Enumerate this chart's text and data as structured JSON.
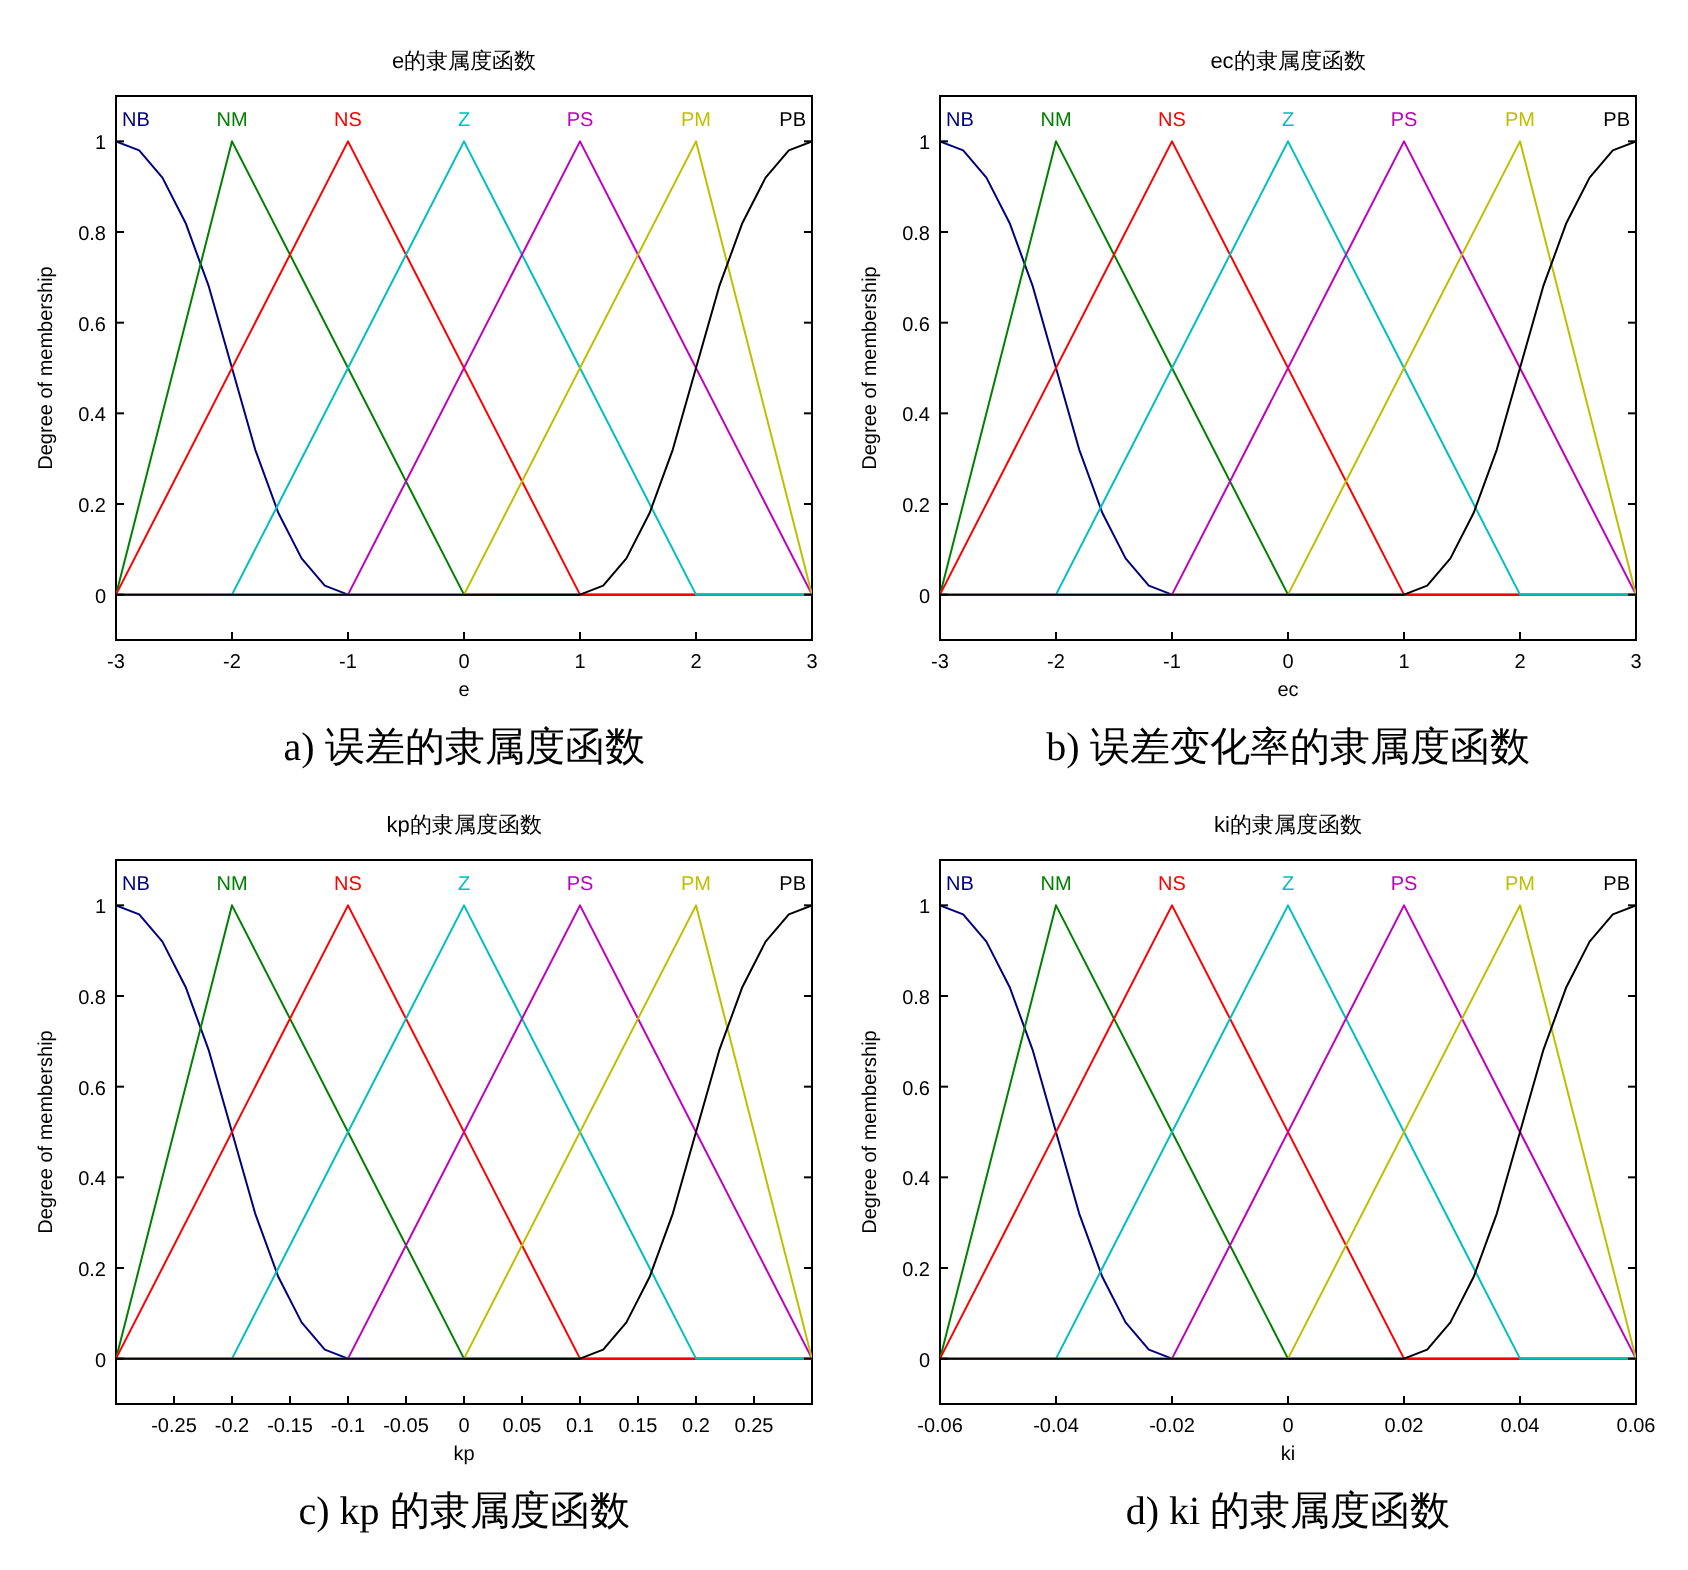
{
  "chart_data": [
    {
      "type": "line",
      "title": "e的隶属度函数",
      "xlabel": "e",
      "ylabel": "Degree of membership",
      "annotations": [
        "a)  误差的隶属度函数"
      ],
      "xlim": [
        -3,
        3
      ],
      "xticks": [
        -3,
        -2,
        -1,
        0,
        1,
        2,
        3
      ],
      "ylim": [
        -0.1,
        1.1
      ],
      "yticks": [
        0,
        0.2,
        0.4,
        0.6,
        0.8,
        1
      ],
      "series": [
        {
          "name": "NB",
          "color": "#000080",
          "x": [
            -3,
            -2.8,
            -2.6,
            -2.4,
            -2.2,
            -2,
            -1.8,
            -1.6,
            -1.4,
            -1.2,
            -1,
            3
          ],
          "values": [
            1,
            0.98,
            0.92,
            0.82,
            0.68,
            0.5,
            0.32,
            0.18,
            0.08,
            0.02,
            0,
            0
          ]
        },
        {
          "name": "NM",
          "color": "#008000",
          "x": [
            -3,
            -2,
            0,
            3
          ],
          "values": [
            0,
            1,
            0,
            0
          ]
        },
        {
          "name": "NS",
          "color": "#ff0000",
          "x": [
            -3,
            -1,
            1,
            3
          ],
          "values": [
            0,
            1,
            0,
            0
          ]
        },
        {
          "name": "Z",
          "color": "#00bfbf",
          "x": [
            -3,
            -2,
            0,
            2,
            3
          ],
          "values": [
            0,
            0,
            1,
            0,
            0
          ]
        },
        {
          "name": "PS",
          "color": "#bf00bf",
          "x": [
            -3,
            -1,
            1,
            3
          ],
          "values": [
            0,
            0,
            1,
            0
          ]
        },
        {
          "name": "PM",
          "color": "#bfbf00",
          "x": [
            -3,
            0,
            2,
            3
          ],
          "values": [
            0,
            0,
            1,
            0
          ]
        },
        {
          "name": "PB",
          "color": "#000000",
          "x": [
            -3,
            1,
            1.2,
            1.4,
            1.6,
            1.8,
            2,
            2.2,
            2.4,
            2.6,
            2.8,
            3
          ],
          "values": [
            0,
            0,
            0.02,
            0.08,
            0.18,
            0.32,
            0.5,
            0.68,
            0.82,
            0.92,
            0.98,
            1
          ]
        }
      ]
    },
    {
      "type": "line",
      "title": "ec的隶属度函数",
      "xlabel": "ec",
      "ylabel": "Degree of membership",
      "annotations": [
        "b)  误差变化率的隶属度函数"
      ],
      "xlim": [
        -3,
        3
      ],
      "xticks": [
        -3,
        -2,
        -1,
        0,
        1,
        2,
        3
      ],
      "ylim": [
        -0.1,
        1.1
      ],
      "yticks": [
        0,
        0.2,
        0.4,
        0.6,
        0.8,
        1
      ],
      "series": [
        {
          "name": "NB",
          "color": "#000080",
          "x": [
            -3,
            -2.8,
            -2.6,
            -2.4,
            -2.2,
            -2,
            -1.8,
            -1.6,
            -1.4,
            -1.2,
            -1,
            3
          ],
          "values": [
            1,
            0.98,
            0.92,
            0.82,
            0.68,
            0.5,
            0.32,
            0.18,
            0.08,
            0.02,
            0,
            0
          ]
        },
        {
          "name": "NM",
          "color": "#008000",
          "x": [
            -3,
            -2,
            0,
            3
          ],
          "values": [
            0,
            1,
            0,
            0
          ]
        },
        {
          "name": "NS",
          "color": "#ff0000",
          "x": [
            -3,
            -1,
            1,
            3
          ],
          "values": [
            0,
            1,
            0,
            0
          ]
        },
        {
          "name": "Z",
          "color": "#00bfbf",
          "x": [
            -3,
            -2,
            0,
            2,
            3
          ],
          "values": [
            0,
            0,
            1,
            0,
            0
          ]
        },
        {
          "name": "PS",
          "color": "#bf00bf",
          "x": [
            -3,
            -1,
            1,
            3
          ],
          "values": [
            0,
            0,
            1,
            0
          ]
        },
        {
          "name": "PM",
          "color": "#bfbf00",
          "x": [
            -3,
            0,
            2,
            3
          ],
          "values": [
            0,
            0,
            1,
            0
          ]
        },
        {
          "name": "PB",
          "color": "#000000",
          "x": [
            -3,
            1,
            1.2,
            1.4,
            1.6,
            1.8,
            2,
            2.2,
            2.4,
            2.6,
            2.8,
            3
          ],
          "values": [
            0,
            0,
            0.02,
            0.08,
            0.18,
            0.32,
            0.5,
            0.68,
            0.82,
            0.92,
            0.98,
            1
          ]
        }
      ]
    },
    {
      "type": "line",
      "title": "kp的隶属度函数",
      "xlabel": "kp",
      "ylabel": "Degree of membership",
      "annotations": [
        "c) kp 的隶属度函数"
      ],
      "xlim": [
        -0.3,
        0.3
      ],
      "xticks": [
        -0.25,
        -0.2,
        -0.15,
        -0.1,
        -0.05,
        0,
        0.05,
        0.1,
        0.15,
        0.2,
        0.25
      ],
      "ylim": [
        -0.1,
        1.1
      ],
      "yticks": [
        0,
        0.2,
        0.4,
        0.6,
        0.8,
        1
      ],
      "series": [
        {
          "name": "NB",
          "color": "#000080",
          "x": [
            -0.3,
            -0.28,
            -0.26,
            -0.24,
            -0.22,
            -0.2,
            -0.18,
            -0.16,
            -0.14,
            -0.12,
            -0.1,
            0.3
          ],
          "values": [
            1,
            0.98,
            0.92,
            0.82,
            0.68,
            0.5,
            0.32,
            0.18,
            0.08,
            0.02,
            0,
            0
          ]
        },
        {
          "name": "NM",
          "color": "#008000",
          "x": [
            -0.3,
            -0.2,
            0,
            0.3
          ],
          "values": [
            0,
            1,
            0,
            0
          ]
        },
        {
          "name": "NS",
          "color": "#ff0000",
          "x": [
            -0.3,
            -0.1,
            0.1,
            0.3
          ],
          "values": [
            0,
            1,
            0,
            0
          ]
        },
        {
          "name": "Z",
          "color": "#00bfbf",
          "x": [
            -0.3,
            -0.2,
            0,
            0.2,
            0.3
          ],
          "values": [
            0,
            0,
            1,
            0,
            0
          ]
        },
        {
          "name": "PS",
          "color": "#bf00bf",
          "x": [
            -0.3,
            -0.1,
            0.1,
            0.3
          ],
          "values": [
            0,
            0,
            1,
            0
          ]
        },
        {
          "name": "PM",
          "color": "#bfbf00",
          "x": [
            -0.3,
            0,
            0.2,
            0.3
          ],
          "values": [
            0,
            0,
            1,
            0
          ]
        },
        {
          "name": "PB",
          "color": "#000000",
          "x": [
            -0.3,
            0.1,
            0.12,
            0.14,
            0.16,
            0.18,
            0.2,
            0.22,
            0.24,
            0.26,
            0.28,
            0.3
          ],
          "values": [
            0,
            0,
            0.02,
            0.08,
            0.18,
            0.32,
            0.5,
            0.68,
            0.82,
            0.92,
            0.98,
            1
          ]
        }
      ]
    },
    {
      "type": "line",
      "title": "ki的隶属度函数",
      "xlabel": "ki",
      "ylabel": "Degree of membership",
      "annotations": [
        "d) ki 的隶属度函数"
      ],
      "xlim": [
        -0.06,
        0.06
      ],
      "xticks": [
        -0.06,
        -0.04,
        -0.02,
        0,
        0.02,
        0.04,
        0.06
      ],
      "ylim": [
        -0.1,
        1.1
      ],
      "yticks": [
        0,
        0.2,
        0.4,
        0.6,
        0.8,
        1
      ],
      "series": [
        {
          "name": "NB",
          "color": "#000080",
          "x": [
            -0.06,
            -0.056,
            -0.052,
            -0.048,
            -0.044,
            -0.04,
            -0.036,
            -0.032,
            -0.028,
            -0.024,
            -0.02,
            0.06
          ],
          "values": [
            1,
            0.98,
            0.92,
            0.82,
            0.68,
            0.5,
            0.32,
            0.18,
            0.08,
            0.02,
            0,
            0
          ]
        },
        {
          "name": "NM",
          "color": "#008000",
          "x": [
            -0.06,
            -0.04,
            0,
            0.06
          ],
          "values": [
            0,
            1,
            0,
            0
          ]
        },
        {
          "name": "NS",
          "color": "#ff0000",
          "x": [
            -0.06,
            -0.02,
            0.02,
            0.06
          ],
          "values": [
            0,
            1,
            0,
            0
          ]
        },
        {
          "name": "Z",
          "color": "#00bfbf",
          "x": [
            -0.06,
            -0.04,
            0,
            0.04,
            0.06
          ],
          "values": [
            0,
            0,
            1,
            0,
            0
          ]
        },
        {
          "name": "PS",
          "color": "#bf00bf",
          "x": [
            -0.06,
            -0.02,
            0.02,
            0.06
          ],
          "values": [
            0,
            0,
            1,
            0
          ]
        },
        {
          "name": "PM",
          "color": "#bfbf00",
          "x": [
            -0.06,
            0,
            0.04,
            0.06
          ],
          "values": [
            0,
            0,
            1,
            0
          ]
        },
        {
          "name": "PB",
          "color": "#000000",
          "x": [
            -0.06,
            0.02,
            0.024,
            0.028,
            0.032,
            0.036,
            0.04,
            0.044,
            0.048,
            0.052,
            0.056,
            0.06
          ],
          "values": [
            0,
            0,
            0.02,
            0.08,
            0.18,
            0.32,
            0.5,
            0.68,
            0.82,
            0.92,
            0.98,
            1
          ]
        }
      ]
    }
  ]
}
